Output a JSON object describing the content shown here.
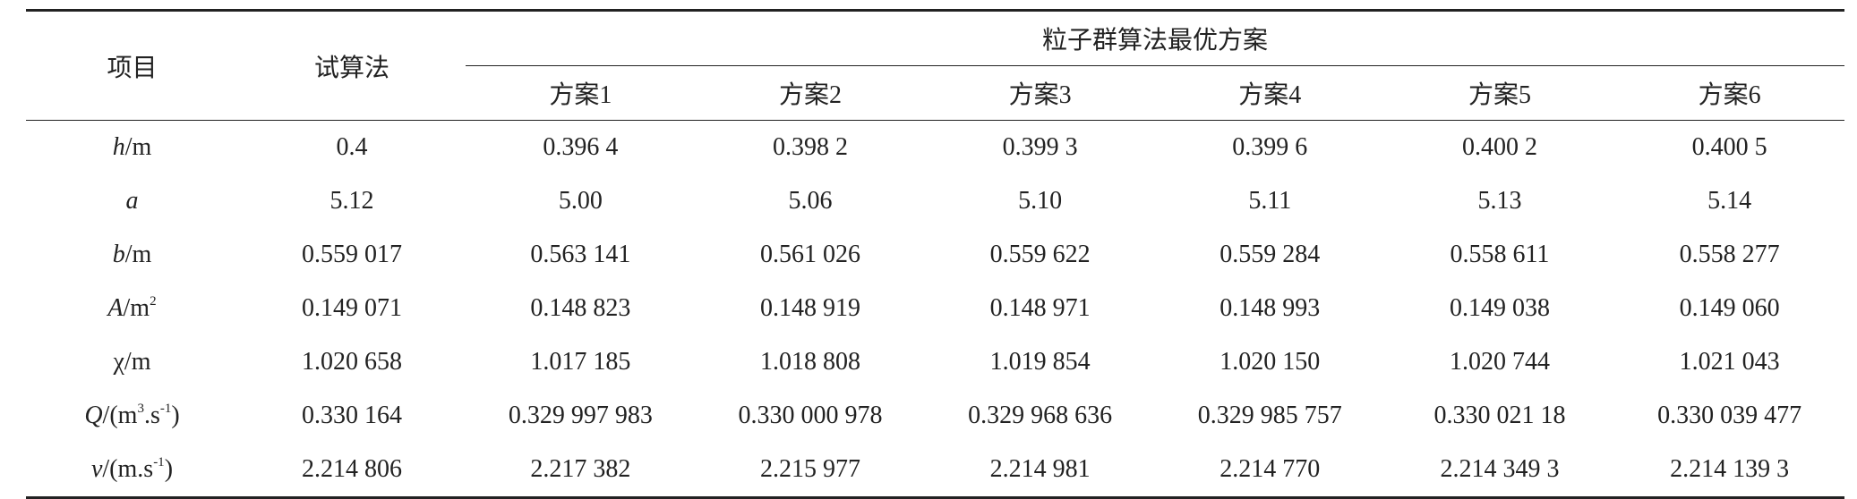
{
  "table": {
    "header": {
      "item": "项目",
      "trial": "试算法",
      "group": "粒子群算法最优方案",
      "schemes": [
        "方案1",
        "方案2",
        "方案3",
        "方案4",
        "方案5",
        "方案6"
      ]
    },
    "rows": [
      {
        "label": [
          {
            "text": "h",
            "italic": true
          },
          {
            "text": "/m"
          }
        ],
        "values": [
          "0.4",
          "0.396 4",
          "0.398 2",
          "0.399 3",
          "0.399 6",
          "0.400 2",
          "0.400 5"
        ]
      },
      {
        "label": [
          {
            "text": "a",
            "italic": true
          }
        ],
        "values": [
          "5.12",
          "5.00",
          "5.06",
          "5.10",
          "5.11",
          "5.13",
          "5.14"
        ]
      },
      {
        "label": [
          {
            "text": "b",
            "italic": true
          },
          {
            "text": "/m"
          }
        ],
        "values": [
          "0.559 017",
          "0.563 141",
          "0.561 026",
          "0.559 622",
          "0.559 284",
          "0.558 611",
          "0.558 277"
        ]
      },
      {
        "label": [
          {
            "text": "A",
            "italic": true
          },
          {
            "text": "/m"
          },
          {
            "text": "2",
            "sup": true
          }
        ],
        "values": [
          "0.149 071",
          "0.148 823",
          "0.148 919",
          "0.148 971",
          "0.148 993",
          "0.149 038",
          "0.149 060"
        ]
      },
      {
        "label": [
          {
            "text": "χ/m"
          }
        ],
        "values": [
          "1.020 658",
          "1.017 185",
          "1.018 808",
          "1.019 854",
          "1.020 150",
          "1.020 744",
          "1.021 043"
        ]
      },
      {
        "label": [
          {
            "text": "Q",
            "italic": true
          },
          {
            "text": "/(m"
          },
          {
            "text": "3",
            "sup": true
          },
          {
            "text": ".s"
          },
          {
            "text": "-1",
            "sup": true
          },
          {
            "text": ")"
          }
        ],
        "values": [
          "0.330 164",
          "0.329 997 983",
          "0.330 000 978",
          "0.329 968 636",
          "0.329 985 757",
          "0.330 021 18",
          "0.330 039 477"
        ]
      },
      {
        "label": [
          {
            "text": "v",
            "italic": true
          },
          {
            "text": "/(m.s"
          },
          {
            "text": "-1",
            "sup": true
          },
          {
            "text": ")"
          }
        ],
        "values": [
          "2.214 806",
          "2.217 382",
          "2.215 977",
          "2.214 981",
          "2.214 770",
          "2.214 349 3",
          "2.214 139 3"
        ]
      }
    ]
  }
}
